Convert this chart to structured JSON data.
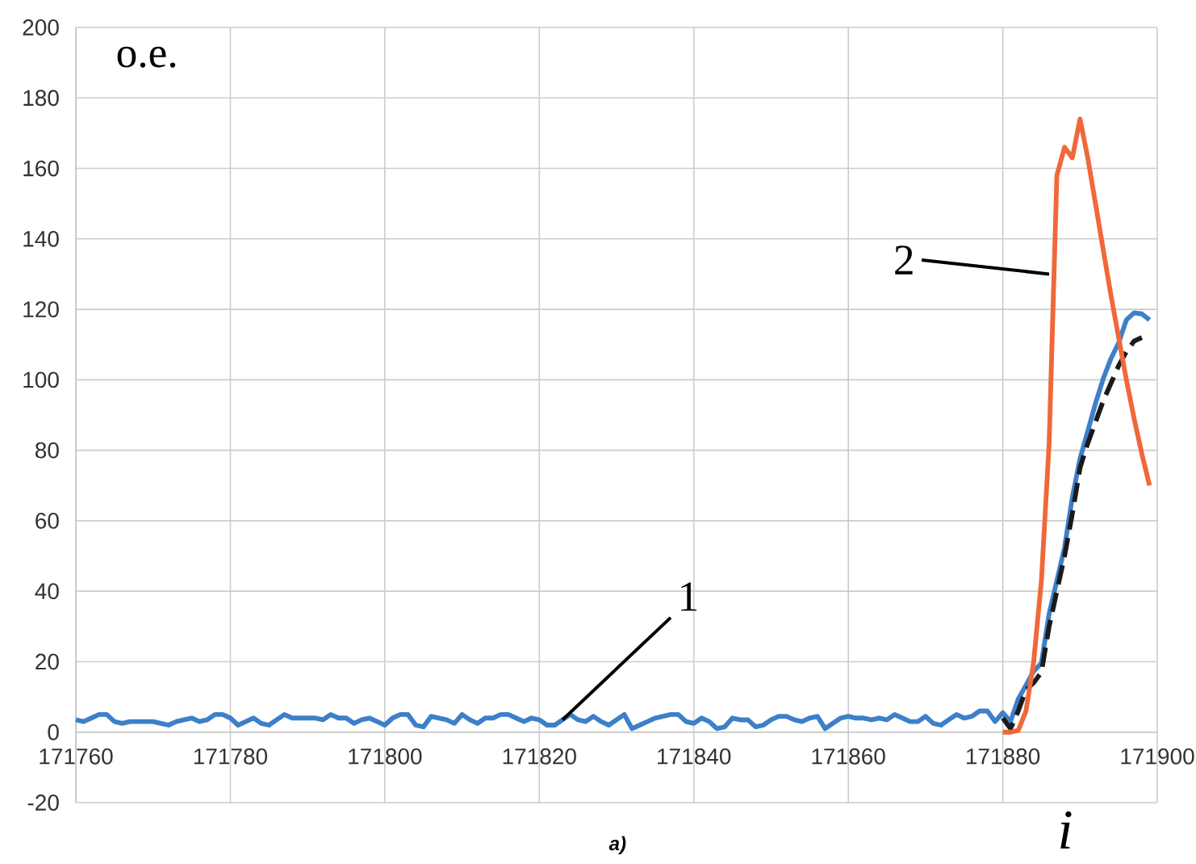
{
  "chart_data": {
    "type": "line",
    "xlabel": "i",
    "ylabel": "o.e.",
    "annotations": [
      "a)"
    ],
    "xlim": [
      171760,
      171900
    ],
    "xticks": [
      171760,
      171780,
      171800,
      171820,
      171840,
      171860,
      171880,
      171900
    ],
    "ylim": [
      -20,
      200
    ],
    "yticks": [
      -20,
      0,
      20,
      40,
      60,
      80,
      100,
      120,
      140,
      160,
      180,
      200
    ],
    "grid": true,
    "marker": "none",
    "series": [
      {
        "name": "1",
        "color": "#3d7fc8",
        "line_style": "solid",
        "x": [
          171760,
          171761,
          171762,
          171763,
          171764,
          171765,
          171766,
          171767,
          171768,
          171769,
          171770,
          171771,
          171772,
          171773,
          171774,
          171775,
          171776,
          171777,
          171778,
          171779,
          171780,
          171781,
          171782,
          171783,
          171784,
          171785,
          171786,
          171787,
          171788,
          171789,
          171790,
          171791,
          171792,
          171793,
          171794,
          171795,
          171796,
          171797,
          171798,
          171799,
          171800,
          171801,
          171802,
          171803,
          171804,
          171805,
          171806,
          171807,
          171808,
          171809,
          171810,
          171811,
          171812,
          171813,
          171814,
          171815,
          171816,
          171817,
          171818,
          171819,
          171820,
          171821,
          171822,
          171823,
          171824,
          171825,
          171826,
          171827,
          171828,
          171829,
          171830,
          171831,
          171832,
          171833,
          171834,
          171835,
          171836,
          171837,
          171838,
          171839,
          171840,
          171841,
          171842,
          171843,
          171844,
          171845,
          171846,
          171847,
          171848,
          171849,
          171850,
          171851,
          171852,
          171853,
          171854,
          171855,
          171856,
          171857,
          171858,
          171859,
          171860,
          171861,
          171862,
          171863,
          171864,
          171865,
          171866,
          171867,
          171868,
          171869,
          171870,
          171871,
          171872,
          171873,
          171874,
          171875,
          171876,
          171877,
          171878,
          171879,
          171880,
          171881,
          171882,
          171883,
          171884,
          171885,
          171886,
          171887,
          171888,
          171889,
          171890,
          171891,
          171892,
          171893,
          171894,
          171895,
          171896,
          171897,
          171898,
          171899
        ],
        "values": [
          3.5,
          3,
          4,
          5,
          5,
          3,
          2.5,
          3,
          3,
          3,
          3,
          2.5,
          2,
          3,
          3.5,
          4,
          3,
          3.5,
          5,
          5,
          4,
          2,
          3,
          4,
          2.5,
          2,
          3.5,
          5,
          4,
          4,
          4,
          4,
          3.5,
          5,
          4,
          4,
          2.5,
          3.5,
          4,
          3,
          2,
          4,
          5,
          5,
          2,
          1.5,
          4.5,
          4,
          3.5,
          2.5,
          5,
          3.5,
          2.5,
          4,
          4,
          5,
          5,
          4,
          3,
          4,
          3.5,
          2,
          2,
          3.5,
          5,
          3.5,
          3,
          4.5,
          3,
          2,
          3.5,
          5,
          1,
          2,
          3,
          4,
          4.5,
          5,
          5,
          3,
          2.5,
          4,
          3,
          1,
          1.5,
          4,
          3.5,
          3.5,
          1.5,
          2,
          3.5,
          4.5,
          4.5,
          3.5,
          3,
          4,
          4.5,
          1,
          2.5,
          4,
          4.5,
          4,
          4,
          3.5,
          4,
          3.5,
          5,
          4,
          3,
          3,
          4.5,
          2.5,
          2,
          3.5,
          5,
          4,
          4.5,
          6,
          6,
          3,
          5.5,
          3,
          9.4,
          13.3,
          17.3,
          19.6,
          33.6,
          43,
          52.4,
          66.6,
          77.6,
          85.4,
          93.3,
          100.3,
          106,
          110.5,
          117,
          119,
          118.7,
          117
        ]
      },
      {
        "color": "#1a1a1a",
        "line_style": "dashed",
        "x": [
          171880,
          171881,
          171882,
          171883,
          171884,
          171885,
          171886,
          171887,
          171888,
          171889,
          171890,
          171891,
          171892,
          171893,
          171894,
          171895,
          171896,
          171897,
          171898
        ],
        "values": [
          4,
          1,
          6,
          12,
          14,
          17,
          30,
          40,
          50,
          62,
          75,
          82,
          88,
          94,
          99,
          104,
          108,
          111,
          112
        ]
      },
      {
        "name": "2",
        "color": "#f0683a",
        "line_style": "solid",
        "x": [
          171880,
          171881,
          171882,
          171883,
          171884,
          171885,
          171886,
          171887,
          171888,
          171889,
          171890,
          171891,
          171892,
          171893,
          171894,
          171895,
          171896,
          171897,
          171898,
          171899
        ],
        "values": [
          0,
          0,
          0.5,
          6,
          20,
          43,
          82,
          158,
          166,
          163,
          174,
          163,
          150,
          137,
          124,
          112,
          100,
          89,
          79,
          70
        ]
      }
    ]
  }
}
